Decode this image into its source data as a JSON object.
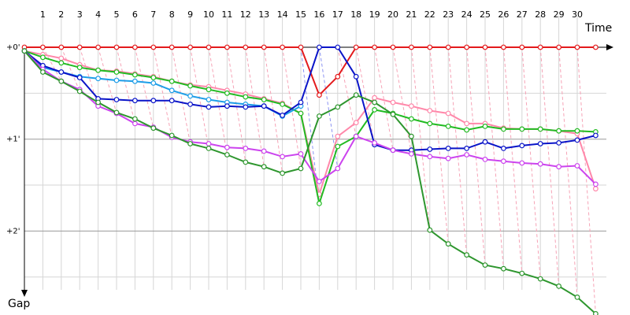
{
  "chart_data": {
    "type": "line",
    "title": "",
    "xlabel": "Time",
    "ylabel": "Gap",
    "y_inverted": true,
    "grid": true,
    "x_ticks": [
      "1",
      "2",
      "3",
      "4",
      "5",
      "6",
      "7",
      "8",
      "9",
      "10",
      "11",
      "12",
      "13",
      "14",
      "15",
      "16",
      "17",
      "18",
      "19",
      "20",
      "21",
      "22",
      "23",
      "24",
      "25",
      "26",
      "27",
      "28",
      "29",
      "30"
    ],
    "y_ticks": [
      {
        "label": "+0'",
        "value": 0
      },
      {
        "label": "+1'",
        "value": 1
      },
      {
        "label": "+2'",
        "value": 2
      }
    ],
    "xlim": [
      0,
      31
    ],
    "ylim": [
      0,
      2.7
    ],
    "series": [
      {
        "color": "#e31a1c",
        "x": [
          0,
          1,
          2,
          3,
          4,
          5,
          6,
          7,
          8,
          9,
          10,
          11,
          12,
          13,
          14,
          15,
          16,
          17,
          18,
          19,
          20,
          21,
          22,
          23,
          24,
          25,
          26,
          27,
          28,
          29,
          30,
          31
        ],
        "y": [
          0,
          0,
          0,
          0,
          0,
          0,
          0,
          0,
          0,
          0,
          0,
          0,
          0,
          0,
          0,
          0,
          0.52,
          0.32,
          0,
          0,
          0,
          0,
          0,
          0,
          0,
          0,
          0,
          0,
          0,
          0,
          0,
          0
        ]
      },
      {
        "color": "#ff88aa",
        "x": [
          0,
          1,
          2,
          3,
          4,
          5,
          6,
          7,
          8,
          9,
          10,
          11,
          12,
          13,
          14,
          15,
          16,
          17,
          18,
          19,
          20,
          21,
          22,
          23,
          24,
          25,
          26,
          27,
          28,
          29,
          30,
          31
        ],
        "y": [
          0.04,
          0.08,
          0.12,
          0.19,
          0.25,
          0.26,
          0.29,
          0.32,
          0.37,
          0.41,
          0.43,
          0.47,
          0.51,
          0.56,
          0.61,
          0.72,
          1.6,
          0.97,
          0.82,
          0.55,
          0.6,
          0.64,
          0.69,
          0.72,
          0.83,
          0.83,
          0.88,
          0.89,
          0.89,
          0.91,
          0.94,
          1.54
        ]
      },
      {
        "color": "#22bb22",
        "x": [
          0,
          1,
          2,
          3,
          4,
          5,
          6,
          7,
          8,
          9,
          10,
          11,
          12,
          13,
          14,
          15,
          16,
          17,
          18,
          19,
          20,
          21,
          22,
          23,
          24,
          25,
          26,
          27,
          28,
          29,
          30,
          31
        ],
        "y": [
          0.04,
          0.11,
          0.17,
          0.22,
          0.25,
          0.27,
          0.3,
          0.33,
          0.37,
          0.42,
          0.46,
          0.5,
          0.54,
          0.57,
          0.62,
          0.72,
          1.7,
          1.08,
          0.97,
          0.68,
          0.72,
          0.78,
          0.83,
          0.86,
          0.9,
          0.86,
          0.89,
          0.89,
          0.89,
          0.91,
          0.91,
          0.92
        ]
      },
      {
        "color": "#1e9ee8",
        "x": [
          0,
          1,
          2,
          3,
          4,
          5,
          6,
          7,
          8,
          9,
          10,
          11,
          12,
          13,
          14,
          15
        ],
        "y": [
          0.04,
          0.22,
          0.27,
          0.32,
          0.34,
          0.36,
          0.37,
          0.39,
          0.47,
          0.53,
          0.57,
          0.6,
          0.62,
          0.64,
          0.75,
          0.64
        ]
      },
      {
        "color": "#0a14c8",
        "x": [
          0,
          1,
          2,
          3,
          4,
          5,
          6,
          7,
          8,
          9,
          10,
          11,
          12,
          13,
          14,
          15,
          16,
          17,
          18,
          19,
          20,
          21,
          22,
          23,
          24,
          25,
          26,
          27,
          28,
          29,
          30,
          31
        ],
        "y": [
          0.04,
          0.2,
          0.27,
          0.33,
          0.56,
          0.57,
          0.58,
          0.58,
          0.58,
          0.62,
          0.65,
          0.64,
          0.65,
          0.64,
          0.74,
          0.6,
          0,
          0,
          0.32,
          1.06,
          1.12,
          1.12,
          1.11,
          1.1,
          1.1,
          1.03,
          1.1,
          1.07,
          1.05,
          1.04,
          1.01,
          0.96
        ]
      },
      {
        "color": "#cc44ee",
        "x": [
          0,
          1,
          2,
          3,
          4,
          5,
          6,
          7,
          8,
          9,
          10,
          11,
          12,
          13,
          14,
          15,
          16,
          17,
          18,
          19,
          20,
          21,
          22,
          23,
          24,
          25,
          26,
          27,
          28,
          29,
          30,
          31
        ],
        "y": [
          0.04,
          0.24,
          0.37,
          0.46,
          0.64,
          0.72,
          0.83,
          0.87,
          0.98,
          1.03,
          1.05,
          1.09,
          1.1,
          1.13,
          1.19,
          1.16,
          1.46,
          1.32,
          0.97,
          1.04,
          1.12,
          1.16,
          1.19,
          1.21,
          1.17,
          1.22,
          1.24,
          1.26,
          1.27,
          1.3,
          1.29,
          1.49
        ]
      },
      {
        "color": "#2e962e",
        "x": [
          0,
          1,
          2,
          3,
          4,
          5,
          6,
          7,
          8,
          9,
          10,
          11,
          12,
          13,
          14,
          15,
          16,
          17,
          18,
          19,
          20,
          21,
          22,
          23,
          24,
          25,
          26,
          27,
          28,
          29,
          30,
          31
        ],
        "y": [
          0.04,
          0.27,
          0.37,
          0.48,
          0.6,
          0.71,
          0.78,
          0.88,
          0.96,
          1.05,
          1.1,
          1.17,
          1.25,
          1.3,
          1.37,
          1.32,
          0.75,
          0.65,
          0.52,
          0.6,
          0.73,
          0.97,
          1.99,
          2.14,
          2.26,
          2.37,
          2.41,
          2.46,
          2.52,
          2.6,
          2.72,
          2.9
        ]
      }
    ]
  }
}
